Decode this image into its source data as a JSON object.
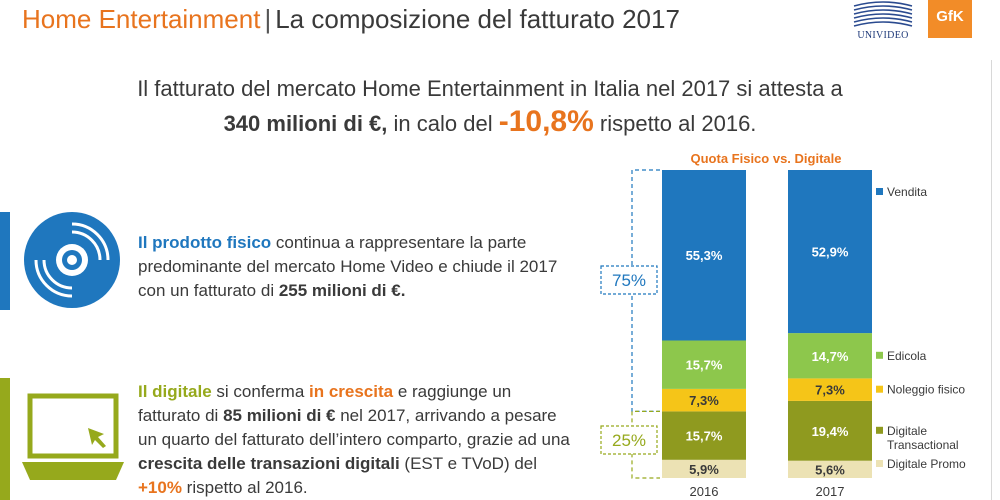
{
  "header": {
    "title_part1": "Home Entertainment",
    "separator": "|",
    "title_part2": "La composizione del fatturato 2017",
    "logo_univideo": "UNIVIDEO",
    "logo_gfk": "GfK"
  },
  "headline": {
    "line1": "Il fatturato del mercato Home Entertainment in Italia nel 2017 si attesta a",
    "amount": "340 milioni di €,",
    "middle": " in calo del ",
    "change": "-10,8%",
    "end": " rispetto al 2016."
  },
  "fisico": {
    "icon": "disc-icon",
    "keyword": "Il prodotto fisico",
    "text1": " continua a rappresentare la parte predominante del mercato Home Video e chiude il 2017 con un fatturato di ",
    "amount": "255 milioni di €."
  },
  "digitale": {
    "icon": "laptop-icon",
    "keyword": "Il digitale",
    "text1": " si conferma ",
    "growth_word": "in crescita",
    "text2": " e raggiunge un fatturato di ",
    "amount": "85 milioni di €",
    "text3": " nel 2017, arrivando a pesare un quarto del fatturato dell’intero comparto, grazie ad una ",
    "bold_phrase": "crescita delle transazioni digitali",
    "text4": " (EST e TVoD) del ",
    "pct": "+10%",
    "text5": " rispetto al 2016."
  },
  "colors": {
    "orange": "#e8741e",
    "blue": "#1f77be",
    "green": "#96a91c",
    "light_green": "#8dc74c",
    "yellow": "#f5c518",
    "olive": "#8f9a1f",
    "cream": "#ece2b4"
  },
  "chart_data": {
    "type": "bar",
    "stacked": true,
    "title": "Quota Fisico vs. Digitale",
    "categories": [
      "2016",
      "2017"
    ],
    "series": [
      {
        "name": "Vendita",
        "values": [
          55.3,
          52.9
        ],
        "labels": [
          "55,3%",
          "52,9%"
        ],
        "color": "#1f77be",
        "label_color": "#ffffff"
      },
      {
        "name": "Edicola",
        "values": [
          15.7,
          14.7
        ],
        "labels": [
          "15,7%",
          "14,7%"
        ],
        "color": "#8dc74c",
        "label_color": "#ffffff"
      },
      {
        "name": "Noleggio fisico",
        "values": [
          7.3,
          7.3
        ],
        "labels": [
          "7,3%",
          "7,3%"
        ],
        "color": "#f5c518",
        "label_color": "#3a3a3a"
      },
      {
        "name": "Digitale Transactional",
        "values": [
          15.7,
          19.4
        ],
        "labels": [
          "15,7%",
          "19,4%"
        ],
        "color": "#8f9a1f",
        "label_color": "#ffffff"
      },
      {
        "name": "Digitale Promo",
        "values": [
          5.9,
          5.6
        ],
        "labels": [
          "5,9%",
          "5,6%"
        ],
        "color": "#ece2b4",
        "label_color": "#3a3a3a"
      }
    ],
    "brackets": [
      {
        "label": "75%",
        "color": "#1f77be"
      },
      {
        "label": "25%",
        "color": "#96a91c"
      }
    ],
    "legend_position": "right"
  }
}
